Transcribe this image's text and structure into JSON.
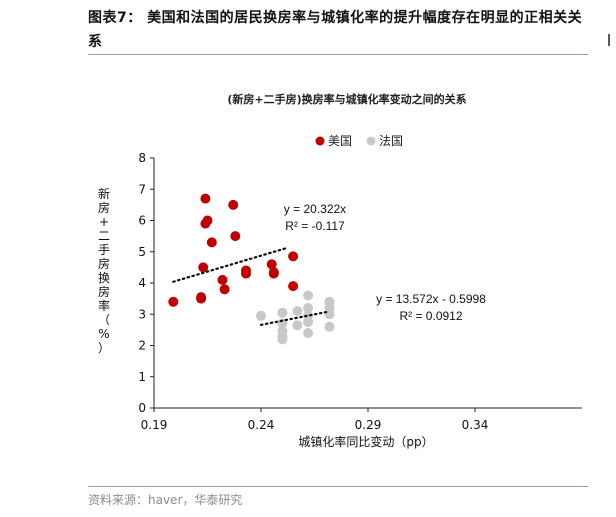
{
  "figure": {
    "title": "图表7： 美国和法国的居民换房率与城镇化率的提升幅度存在明显的正相关关系",
    "source": "资料来源：haver，华泰研究"
  },
  "chart_data": {
    "type": "scatter",
    "title": "(新房+二手房)换房率与城镇化率变动之间的关系",
    "xlabel": "城镇化率同比变动（pp）",
    "ylabel": "新房+二手房换房率（%）",
    "xlim": [
      0.19,
      0.39
    ],
    "ylim": [
      0,
      8
    ],
    "xticks": [
      "0.19",
      "0.24",
      "0.29",
      "0.34"
    ],
    "yticks": [
      "0",
      "1",
      "2",
      "3",
      "4",
      "5",
      "6",
      "7",
      "8"
    ],
    "legend_position": "top",
    "series": [
      {
        "name": "美国",
        "color": "#c00000",
        "points": [
          [
            0.199,
            3.4
          ],
          [
            0.212,
            3.55
          ],
          [
            0.212,
            3.5
          ],
          [
            0.213,
            4.5
          ],
          [
            0.214,
            6.7
          ],
          [
            0.214,
            5.9
          ],
          [
            0.215,
            6.0
          ],
          [
            0.217,
            5.3
          ],
          [
            0.222,
            4.1
          ],
          [
            0.223,
            3.8
          ],
          [
            0.227,
            6.5
          ],
          [
            0.228,
            5.5
          ],
          [
            0.233,
            4.4
          ],
          [
            0.233,
            4.3
          ],
          [
            0.245,
            4.6
          ],
          [
            0.246,
            4.35
          ],
          [
            0.246,
            4.3
          ],
          [
            0.255,
            4.85
          ],
          [
            0.255,
            3.9
          ]
        ],
        "trendline": {
          "equation": "y = 20.322x",
          "r2": "R² = -0.117",
          "from": [
            0.199,
            4.04
          ],
          "to": [
            0.252,
            5.12
          ]
        }
      },
      {
        "name": "法国",
        "color": "#c8c8c8",
        "points": [
          [
            0.24,
            2.95
          ],
          [
            0.25,
            3.05
          ],
          [
            0.25,
            2.7
          ],
          [
            0.25,
            2.45
          ],
          [
            0.25,
            2.3
          ],
          [
            0.25,
            2.2
          ],
          [
            0.257,
            2.65
          ],
          [
            0.257,
            3.1
          ],
          [
            0.262,
            3.6
          ],
          [
            0.262,
            3.2
          ],
          [
            0.262,
            2.95
          ],
          [
            0.262,
            2.75
          ],
          [
            0.262,
            2.4
          ],
          [
            0.272,
            3.0
          ],
          [
            0.272,
            3.2
          ],
          [
            0.272,
            3.35
          ],
          [
            0.272,
            3.4
          ],
          [
            0.272,
            2.6
          ]
        ],
        "trendline": {
          "equation": "y = 13.572x - 0.5998",
          "r2": "R² = 0.0912",
          "from": [
            0.24,
            2.66
          ],
          "to": [
            0.272,
            3.09
          ]
        }
      }
    ]
  }
}
